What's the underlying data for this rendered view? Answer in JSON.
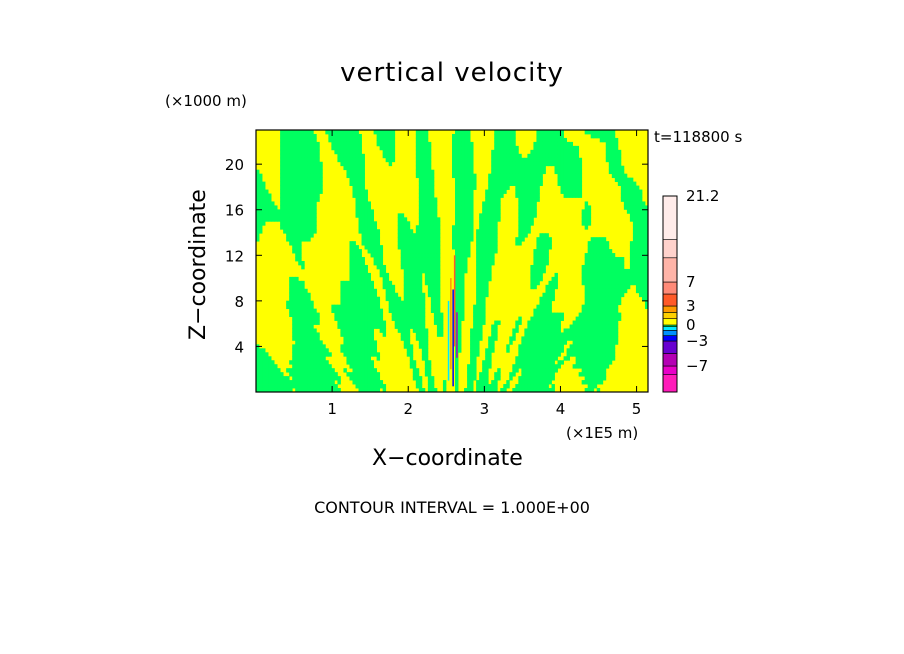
{
  "chart_data": {
    "type": "heatmap",
    "title": "vertical velocity",
    "xlabel": "X−coordinate",
    "ylabel": "Z−coordinate",
    "x_unit": "(×1E5 m)",
    "y_unit": "(×1000 m)",
    "time_label": "t=118800 s",
    "footer": "CONTOUR INTERVAL = 1.000E+00",
    "xlim": [
      0,
      5.15
    ],
    "ylim": [
      0,
      23
    ],
    "x_ticks": [
      1,
      2,
      3,
      4,
      5
    ],
    "y_ticks": [
      4,
      8,
      12,
      16,
      20
    ],
    "colorbar": {
      "levels": [
        {
          "color": "#ff1cba"
        },
        {
          "color": "#e800c8"
        },
        {
          "color": "#b400b4"
        },
        {
          "color": "#6800d0"
        },
        {
          "color": "#0000ff"
        },
        {
          "color": "#0090ff"
        },
        {
          "color": "#00e8ff"
        },
        {
          "color": "#00ff60"
        },
        {
          "color": "#ffff00"
        },
        {
          "color": "#ffd000"
        },
        {
          "color": "#ff9a00"
        },
        {
          "color": "#ff5a28"
        },
        {
          "color": "#ff8a78"
        },
        {
          "color": "#ffb4a8"
        },
        {
          "color": "#ffd2cc"
        },
        {
          "color": "#ffecea"
        }
      ],
      "labels": [
        {
          "text": "21.2",
          "value": 21.2
        },
        {
          "text": "7",
          "value": 7
        },
        {
          "text": "3",
          "value": 3
        },
        {
          "text": "0",
          "value": 0
        },
        {
          "text": "−3",
          "value": -3
        },
        {
          "text": "−7",
          "value": -7
        }
      ]
    }
  }
}
